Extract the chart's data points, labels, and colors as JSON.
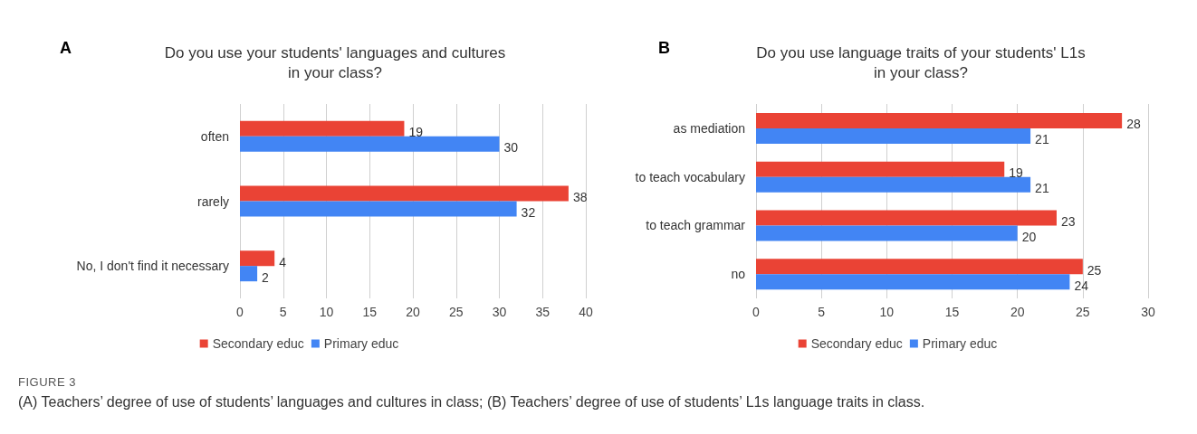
{
  "chart_data": [
    {
      "type": "bar",
      "orientation": "horizontal",
      "title": "Do you use your students' languages and cultures\nin your class?",
      "categories": [
        "often",
        "rarely",
        "No, I don't find it necessary"
      ],
      "series": [
        {
          "name": "Secondary educ",
          "color": "#ea4335",
          "values": [
            19,
            38,
            4
          ]
        },
        {
          "name": "Primary educ",
          "color": "#4285f4",
          "values": [
            30,
            32,
            2
          ]
        }
      ],
      "xlim": [
        0,
        40
      ],
      "xticks": [
        0,
        5,
        10,
        15,
        20,
        25,
        30,
        35,
        40
      ],
      "grid": "x",
      "legend": "bottom",
      "data_labels": true,
      "annotations": [
        "A",
        "FIGURE 3",
        "(A) Teachers’ degree of use of students’ languages and cultures in class; (B) Teachers’ degree of use of students’ L1s language traits in class."
      ]
    },
    {
      "type": "bar",
      "orientation": "horizontal",
      "title": "Do you use language traits of your students' L1s\nin your class?",
      "categories": [
        "as mediation",
        "to teach vocabulary",
        "to teach grammar",
        "no"
      ],
      "series": [
        {
          "name": "Secondary educ",
          "color": "#ea4335",
          "values": [
            28,
            19,
            23,
            25
          ]
        },
        {
          "name": "Primary educ",
          "color": "#4285f4",
          "values": [
            21,
            21,
            20,
            24
          ]
        }
      ],
      "xlim": [
        0,
        30
      ],
      "xticks": [
        0,
        5,
        10,
        15,
        20,
        25,
        30
      ],
      "grid": "x",
      "legend": "bottom",
      "data_labels": true,
      "annotations": [
        "B"
      ]
    }
  ]
}
